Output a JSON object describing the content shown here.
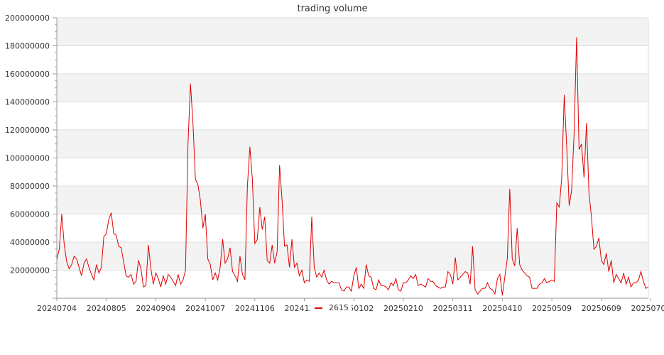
{
  "chart_data": {
    "type": "line",
    "title": "trading volume",
    "xlabel": "",
    "ylabel": "",
    "ylim": [
      0,
      200000000
    ],
    "yticks": [
      20000000,
      40000000,
      60000000,
      80000000,
      100000000,
      120000000,
      140000000,
      160000000,
      180000000,
      200000000
    ],
    "ytick_labels": [
      "20000000",
      "40000000",
      "60000000",
      "80000000",
      "100000000",
      "120000000",
      "140000000",
      "160000000",
      "180000000",
      "200000000"
    ],
    "xtick_labels": [
      "20240704",
      "20240805",
      "20240904",
      "20241007",
      "20241106",
      "20241206",
      "20250102",
      "20250210",
      "20250311",
      "20250410",
      "20250509",
      "20250609",
      "20250709"
    ],
    "xtick_indices": [
      0,
      20,
      40,
      60,
      80,
      100,
      120,
      140,
      160,
      180,
      200,
      220,
      240
    ],
    "grid": true,
    "legend_position": "bottom-center",
    "series": [
      {
        "name": "2615",
        "color": "#e00000",
        "values": [
          28000000,
          35000000,
          60000000,
          38000000,
          26000000,
          21000000,
          24000000,
          30000000,
          28000000,
          22000000,
          16000000,
          25000000,
          28000000,
          22000000,
          17000000,
          13000000,
          24000000,
          18000000,
          22000000,
          44000000,
          46000000,
          56000000,
          61000000,
          46000000,
          45000000,
          37000000,
          36000000,
          26000000,
          16000000,
          15000000,
          17000000,
          10000000,
          12000000,
          27000000,
          21000000,
          8000000,
          9000000,
          38000000,
          21000000,
          10000000,
          18000000,
          14000000,
          8000000,
          16000000,
          10000000,
          17000000,
          15000000,
          12000000,
          9000000,
          17000000,
          10000000,
          13000000,
          20000000,
          110000000,
          153000000,
          125000000,
          85000000,
          81000000,
          70000000,
          50000000,
          60000000,
          28000000,
          24000000,
          13000000,
          18000000,
          13000000,
          22000000,
          42000000,
          25000000,
          28000000,
          36000000,
          19000000,
          16000000,
          12000000,
          30000000,
          17000000,
          13000000,
          80000000,
          108000000,
          85000000,
          39000000,
          42000000,
          65000000,
          49000000,
          58000000,
          27000000,
          25000000,
          38000000,
          25000000,
          33000000,
          95000000,
          70000000,
          37000000,
          38000000,
          22000000,
          42000000,
          22000000,
          25000000,
          16000000,
          20000000,
          11000000,
          13000000,
          12000000,
          58000000,
          22000000,
          15000000,
          18000000,
          15000000,
          20000000,
          13000000,
          10000000,
          12000000,
          11000000,
          11000000,
          11000000,
          6000000,
          5000000,
          8000000,
          8000000,
          5000000,
          16000000,
          22000000,
          7000000,
          10000000,
          7000000,
          24000000,
          16000000,
          15000000,
          7000000,
          6000000,
          13000000,
          9000000,
          9000000,
          8000000,
          6000000,
          11000000,
          9000000,
          14000000,
          6000000,
          5000000,
          11000000,
          11000000,
          13000000,
          16000000,
          14000000,
          17000000,
          9000000,
          10000000,
          9000000,
          8000000,
          14000000,
          12000000,
          12000000,
          9000000,
          8000000,
          7000000,
          8000000,
          8000000,
          19000000,
          17000000,
          10000000,
          29000000,
          13000000,
          15000000,
          17000000,
          19000000,
          18000000,
          10000000,
          37000000,
          6000000,
          3000000,
          5000000,
          7000000,
          7000000,
          11000000,
          7000000,
          6000000,
          3000000,
          14000000,
          17000000,
          2000000,
          15000000,
          28000000,
          78000000,
          28000000,
          23000000,
          50000000,
          24000000,
          20000000,
          18000000,
          16000000,
          15000000,
          7000000,
          7000000,
          7000000,
          10000000,
          11000000,
          14000000,
          11000000,
          12000000,
          13000000,
          12000000,
          68000000,
          65000000,
          86000000,
          145000000,
          108000000,
          66000000,
          77000000,
          118000000,
          186000000,
          106000000,
          110000000,
          86000000,
          125000000,
          75000000,
          58000000,
          35000000,
          37000000,
          43000000,
          27000000,
          24000000,
          32000000,
          19000000,
          27000000,
          11000000,
          17000000,
          14000000,
          11000000,
          18000000,
          10000000,
          15000000,
          8000000,
          11000000,
          11000000,
          13000000,
          19000000,
          12000000,
          7000000,
          8000000
        ]
      }
    ]
  }
}
